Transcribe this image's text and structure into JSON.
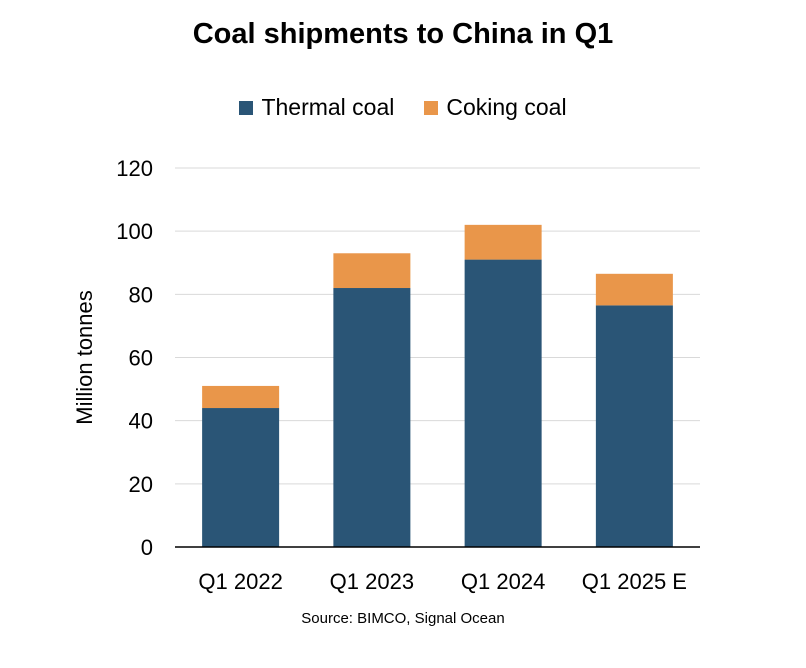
{
  "chart_data": {
    "type": "bar",
    "stacked": true,
    "title": "Coal shipments to China in Q1",
    "xlabel": "",
    "ylabel": "Million tonnes",
    "categories": [
      "Q1 2022",
      "Q1 2023",
      "Q1 2024",
      "Q1 2025 E"
    ],
    "series": [
      {
        "name": "Thermal coal",
        "color": "#2a5576",
        "values": [
          44,
          82,
          91,
          76.5
        ]
      },
      {
        "name": "Coking coal",
        "color": "#e9964a",
        "values": [
          7,
          11,
          11,
          10
        ]
      }
    ],
    "ylim": [
      0,
      120
    ],
    "yticks": [
      0,
      20,
      40,
      60,
      80,
      100,
      120
    ],
    "grid": true,
    "legend_position": "top",
    "source": "Source: BIMCO, Signal Ocean"
  }
}
